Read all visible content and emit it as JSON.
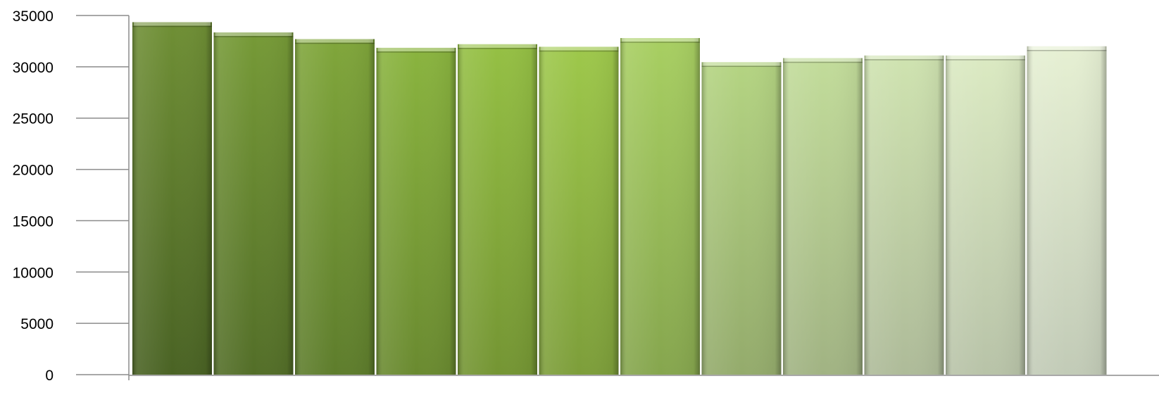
{
  "chart_data": {
    "type": "bar",
    "title": "",
    "xlabel": "",
    "ylabel": "",
    "ylim": [
      0,
      35000
    ],
    "yticks": [
      0,
      5000,
      10000,
      15000,
      20000,
      25000,
      30000,
      35000
    ],
    "grid": false,
    "legend": "none",
    "values": [
      34350,
      33350,
      32700,
      31850,
      32200,
      31950,
      32800,
      30450,
      30850,
      31100,
      31100,
      32000
    ],
    "colors_top": [
      "#6f8f35",
      "#769a37",
      "#80a63b",
      "#8ab43f",
      "#95c044",
      "#9ec84b",
      "#a8cf62",
      "#b4d482",
      "#c2dc9a",
      "#cfe3b0",
      "#dbeac2",
      "#e6f0d3"
    ],
    "colors_bottom": [
      "#4a6324",
      "#536e28",
      "#5e7d2c",
      "#6a8a30",
      "#749533",
      "#7d9e3a",
      "#86a64e",
      "#94ab6c",
      "#a1b383",
      "#aebb99",
      "#b8c3a8",
      "#c2cbb7"
    ]
  }
}
